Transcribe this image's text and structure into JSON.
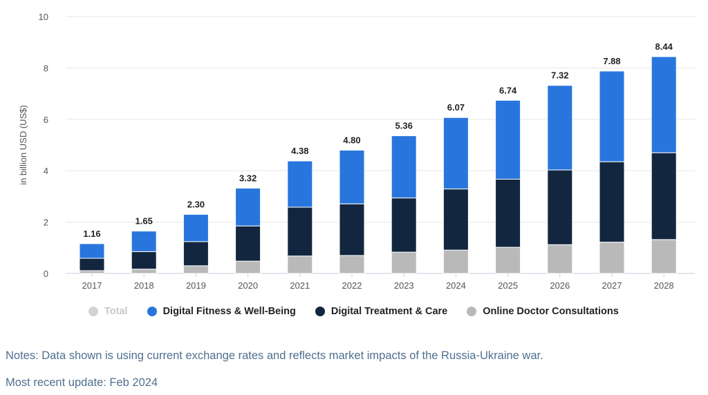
{
  "chart_data": {
    "type": "bar",
    "stacked": true,
    "ylabel": "in billion USD (US$)",
    "ylim": [
      0,
      10
    ],
    "yticks": [
      0,
      2,
      4,
      6,
      8,
      10
    ],
    "grid": true,
    "legend_position": "bottom",
    "categories": [
      "2017",
      "2018",
      "2019",
      "2020",
      "2021",
      "2022",
      "2023",
      "2024",
      "2025",
      "2026",
      "2027",
      "2028"
    ],
    "totals": [
      1.16,
      1.65,
      2.3,
      3.32,
      4.38,
      4.8,
      5.36,
      6.07,
      6.74,
      7.32,
      7.88,
      8.44
    ],
    "total_labels": [
      "1.16",
      "1.65",
      "2.30",
      "3.32",
      "4.38",
      "4.80",
      "5.36",
      "6.07",
      "6.74",
      "7.32",
      "7.88",
      "8.44"
    ],
    "series": [
      {
        "name": "Online Doctor Consultations",
        "color": "#b9b9b9",
        "values": [
          0.11,
          0.17,
          0.3,
          0.48,
          0.68,
          0.7,
          0.83,
          0.91,
          1.02,
          1.12,
          1.22,
          1.32
        ]
      },
      {
        "name": "Digital Treatment & Care",
        "color": "#12263f",
        "values": [
          0.48,
          0.68,
          0.94,
          1.37,
          1.9,
          2.01,
          2.11,
          2.38,
          2.65,
          2.91,
          3.13,
          3.38
        ]
      },
      {
        "name": "Digital Fitness & Well-Being",
        "color": "#2876dd",
        "values": [
          0.57,
          0.8,
          1.06,
          1.47,
          1.8,
          2.09,
          2.42,
          2.78,
          3.07,
          3.29,
          3.53,
          3.74
        ]
      }
    ],
    "legend": [
      {
        "name": "Total",
        "color": "#d3d3d3",
        "muted": true
      },
      {
        "name": "Digital Fitness & Well-Being",
        "color": "#2876dd"
      },
      {
        "name": "Digital Treatment & Care",
        "color": "#12263f"
      },
      {
        "name": "Online Doctor Consultations",
        "color": "#b9b9b9"
      }
    ]
  },
  "notes": "Notes: Data shown is using current exchange rates and reflects market impacts of the Russia-Ukraine war.",
  "update": "Most recent update: Feb 2024"
}
